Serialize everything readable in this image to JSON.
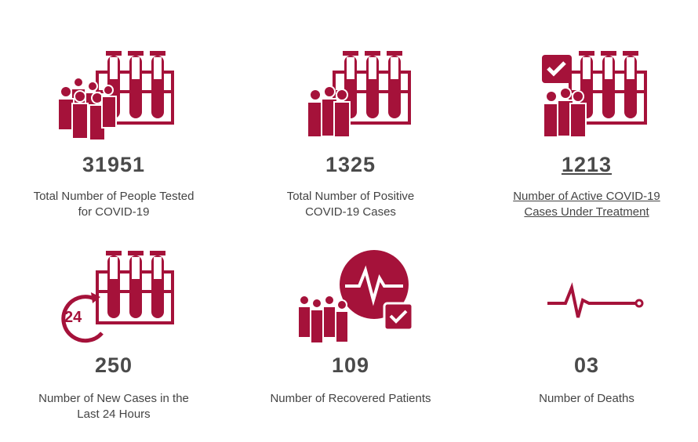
{
  "accent_color": "#a5123a",
  "stats": [
    {
      "value": "31951",
      "label_line1": "Total Number of People Tested",
      "label_line2": "for COVID-19",
      "icon": "test-tubes-crowd-icon"
    },
    {
      "value": "1325",
      "label_line1": "Total Number of Positive",
      "label_line2": "COVID-19 Cases",
      "icon": "test-tubes-people-icon"
    },
    {
      "value": "1213",
      "label_line1": "Number of Active COVID-19",
      "label_line2": "Cases Under Treatment",
      "icon": "test-tubes-checkmark-icon"
    },
    {
      "value": "250",
      "label_line1": "Number of New Cases in the",
      "label_line2": "Last 24 Hours",
      "icon": "test-tubes-24-hours-icon",
      "icon_text": "24"
    },
    {
      "value": "109",
      "label_line1": "Number of Recovered Patients",
      "label_line2": "",
      "icon": "recovered-heartbeat-icon"
    },
    {
      "value": "03",
      "label_line1": "Number of Deaths",
      "label_line2": "",
      "icon": "flatline-heartbeat-icon"
    }
  ]
}
